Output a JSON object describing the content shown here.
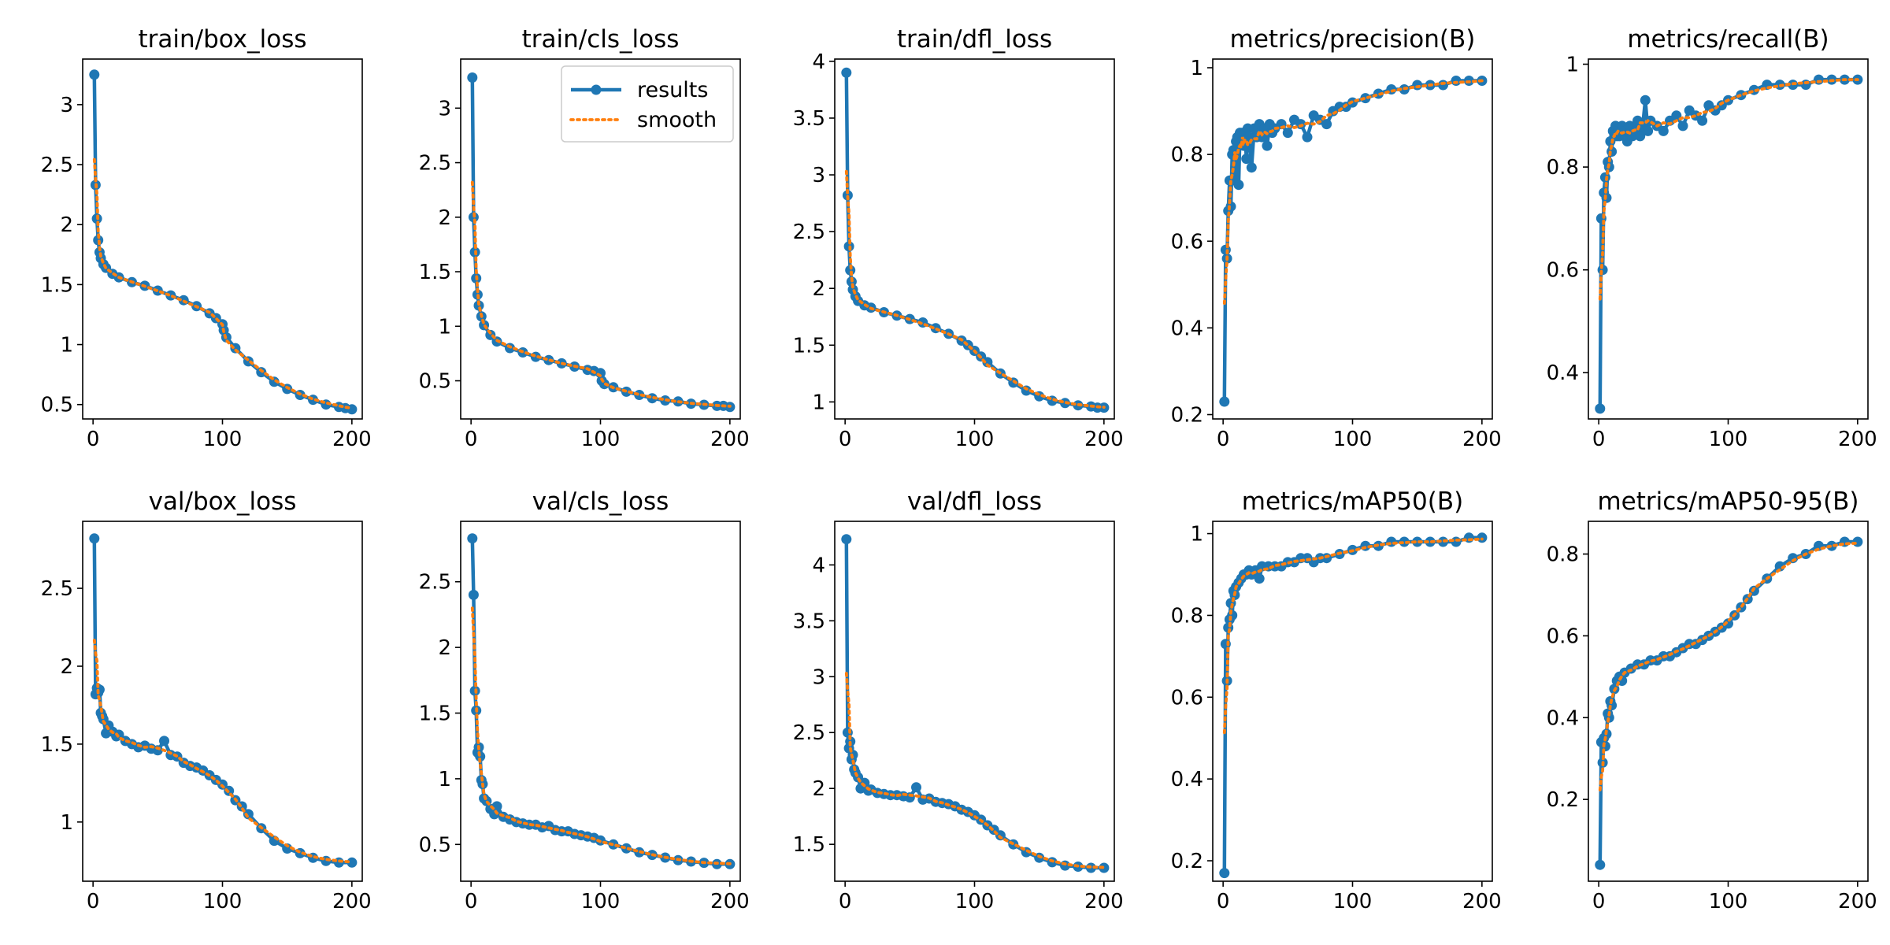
{
  "colors": {
    "results": "#1f77b4",
    "smooth": "#ff7f0e"
  },
  "legend": {
    "entries": [
      "results",
      "smooth"
    ],
    "subplot": 1,
    "placement": "upper-right"
  },
  "chart_data": [
    {
      "type": "line",
      "title": "train/box_loss",
      "xlim": [
        -8,
        208
      ],
      "ylim": [
        0.38,
        3.38
      ],
      "xticks": [
        0,
        100,
        200
      ],
      "yticks": [
        0.5,
        1.0,
        1.5,
        2.0,
        2.5,
        3.0
      ],
      "series": [
        {
          "name": "results",
          "x": [
            1,
            2,
            3,
            4,
            5,
            6,
            8,
            10,
            15,
            20,
            30,
            40,
            50,
            60,
            70,
            80,
            90,
            95,
            100,
            101,
            103,
            110,
            120,
            130,
            140,
            150,
            160,
            170,
            180,
            190,
            195,
            200
          ],
          "y": [
            3.25,
            2.33,
            2.05,
            1.87,
            1.77,
            1.72,
            1.67,
            1.64,
            1.59,
            1.56,
            1.52,
            1.49,
            1.45,
            1.41,
            1.37,
            1.32,
            1.26,
            1.22,
            1.17,
            1.12,
            1.06,
            0.97,
            0.86,
            0.77,
            0.69,
            0.63,
            0.58,
            0.54,
            0.5,
            0.48,
            0.47,
            0.46
          ]
        }
      ]
    },
    {
      "type": "line",
      "title": "train/cls_loss",
      "xlim": [
        -8,
        208
      ],
      "ylim": [
        0.15,
        3.45
      ],
      "xticks": [
        0,
        100,
        200
      ],
      "yticks": [
        0.5,
        1.0,
        1.5,
        2.0,
        2.5,
        3.0
      ],
      "series": [
        {
          "name": "results",
          "x": [
            1,
            2,
            3,
            4,
            5,
            6,
            8,
            10,
            15,
            20,
            30,
            40,
            50,
            60,
            70,
            80,
            90,
            95,
            100,
            101,
            103,
            110,
            120,
            130,
            140,
            150,
            160,
            170,
            180,
            190,
            195,
            200
          ],
          "y": [
            3.28,
            2.0,
            1.68,
            1.44,
            1.29,
            1.19,
            1.09,
            1.01,
            0.92,
            0.86,
            0.8,
            0.76,
            0.72,
            0.69,
            0.66,
            0.63,
            0.6,
            0.59,
            0.57,
            0.5,
            0.47,
            0.44,
            0.4,
            0.37,
            0.34,
            0.32,
            0.31,
            0.29,
            0.28,
            0.27,
            0.27,
            0.26
          ]
        }
      ]
    },
    {
      "type": "line",
      "title": "train/dfl_loss",
      "xlim": [
        -8,
        208
      ],
      "ylim": [
        0.85,
        4.02
      ],
      "xticks": [
        0,
        100,
        200
      ],
      "yticks": [
        1.0,
        1.5,
        2.0,
        2.5,
        3.0,
        3.5,
        4.0
      ],
      "series": [
        {
          "name": "results",
          "x": [
            1,
            2,
            3,
            4,
            5,
            6,
            8,
            10,
            15,
            20,
            30,
            40,
            50,
            60,
            70,
            80,
            90,
            95,
            100,
            105,
            110,
            120,
            130,
            140,
            150,
            160,
            170,
            180,
            190,
            195,
            200
          ],
          "y": [
            3.9,
            2.82,
            2.37,
            2.16,
            2.06,
            1.99,
            1.93,
            1.89,
            1.85,
            1.83,
            1.79,
            1.76,
            1.73,
            1.7,
            1.65,
            1.6,
            1.54,
            1.5,
            1.45,
            1.4,
            1.35,
            1.25,
            1.17,
            1.1,
            1.05,
            1.01,
            0.99,
            0.97,
            0.96,
            0.95,
            0.95
          ]
        }
      ]
    },
    {
      "type": "line",
      "title": "metrics/precision(B)",
      "xlim": [
        -8,
        208
      ],
      "ylim": [
        0.19,
        1.02
      ],
      "xticks": [
        0,
        100,
        200
      ],
      "yticks": [
        0.2,
        0.4,
        0.6,
        0.8,
        1.0
      ],
      "series": [
        {
          "name": "results",
          "x": [
            1,
            2,
            3,
            4,
            5,
            6,
            7,
            8,
            9,
            10,
            11,
            12,
            13,
            14,
            15,
            16,
            17,
            18,
            19,
            20,
            22,
            24,
            26,
            28,
            30,
            32,
            34,
            36,
            38,
            40,
            45,
            50,
            55,
            60,
            65,
            70,
            75,
            80,
            85,
            90,
            95,
            100,
            110,
            120,
            130,
            140,
            150,
            160,
            170,
            180,
            190,
            200
          ],
          "y": [
            0.23,
            0.58,
            0.56,
            0.67,
            0.74,
            0.68,
            0.8,
            0.81,
            0.74,
            0.83,
            0.84,
            0.73,
            0.85,
            0.83,
            0.85,
            0.82,
            0.85,
            0.79,
            0.86,
            0.84,
            0.77,
            0.86,
            0.84,
            0.87,
            0.84,
            0.86,
            0.82,
            0.87,
            0.85,
            0.86,
            0.87,
            0.85,
            0.88,
            0.87,
            0.84,
            0.89,
            0.88,
            0.87,
            0.9,
            0.91,
            0.91,
            0.92,
            0.93,
            0.94,
            0.95,
            0.95,
            0.96,
            0.96,
            0.96,
            0.97,
            0.97,
            0.97
          ]
        }
      ]
    },
    {
      "type": "line",
      "title": "metrics/recall(B)",
      "xlim": [
        -8,
        208
      ],
      "ylim": [
        0.31,
        1.01
      ],
      "xticks": [
        0,
        100,
        200
      ],
      "yticks": [
        0.4,
        0.6,
        0.8,
        1.0
      ],
      "series": [
        {
          "name": "results",
          "x": [
            1,
            2,
            3,
            4,
            5,
            6,
            7,
            8,
            9,
            10,
            11,
            12,
            13,
            14,
            15,
            16,
            18,
            20,
            22,
            24,
            26,
            28,
            30,
            32,
            34,
            36,
            38,
            40,
            45,
            50,
            55,
            60,
            65,
            70,
            75,
            80,
            85,
            90,
            95,
            100,
            110,
            120,
            130,
            140,
            150,
            160,
            170,
            180,
            190,
            200
          ],
          "y": [
            0.33,
            0.7,
            0.6,
            0.75,
            0.78,
            0.74,
            0.81,
            0.8,
            0.85,
            0.83,
            0.87,
            0.86,
            0.88,
            0.86,
            0.87,
            0.86,
            0.88,
            0.87,
            0.85,
            0.88,
            0.86,
            0.87,
            0.89,
            0.86,
            0.88,
            0.93,
            0.87,
            0.89,
            0.88,
            0.87,
            0.89,
            0.9,
            0.88,
            0.91,
            0.9,
            0.89,
            0.92,
            0.91,
            0.92,
            0.93,
            0.94,
            0.95,
            0.96,
            0.96,
            0.96,
            0.96,
            0.97,
            0.97,
            0.97,
            0.97
          ]
        }
      ]
    },
    {
      "type": "line",
      "title": "val/box_loss",
      "xlim": [
        -8,
        208
      ],
      "ylim": [
        0.62,
        2.93
      ],
      "xticks": [
        0,
        100,
        200
      ],
      "yticks": [
        1.0,
        1.5,
        2.0,
        2.5
      ],
      "series": [
        {
          "name": "results",
          "x": [
            1,
            2,
            3,
            4,
            5,
            6,
            7,
            8,
            10,
            12,
            15,
            18,
            20,
            25,
            30,
            35,
            40,
            45,
            50,
            55,
            60,
            65,
            70,
            75,
            80,
            85,
            90,
            95,
            100,
            105,
            110,
            115,
            120,
            130,
            140,
            150,
            160,
            170,
            180,
            190,
            200
          ],
          "y": [
            2.82,
            1.82,
            1.86,
            1.83,
            1.85,
            1.7,
            1.68,
            1.66,
            1.57,
            1.62,
            1.58,
            1.55,
            1.56,
            1.52,
            1.5,
            1.48,
            1.49,
            1.47,
            1.46,
            1.52,
            1.43,
            1.42,
            1.38,
            1.36,
            1.35,
            1.33,
            1.3,
            1.27,
            1.24,
            1.2,
            1.14,
            1.1,
            1.05,
            0.96,
            0.88,
            0.83,
            0.8,
            0.77,
            0.75,
            0.74,
            0.74
          ]
        }
      ]
    },
    {
      "type": "line",
      "title": "val/cls_loss",
      "xlim": [
        -8,
        208
      ],
      "ylim": [
        0.22,
        2.96
      ],
      "xticks": [
        0,
        100,
        200
      ],
      "yticks": [
        0.5,
        1.0,
        1.5,
        2.0,
        2.5
      ],
      "series": [
        {
          "name": "results",
          "x": [
            1,
            2,
            3,
            4,
            5,
            6,
            7,
            8,
            9,
            10,
            12,
            15,
            18,
            20,
            25,
            30,
            35,
            40,
            45,
            50,
            55,
            60,
            65,
            70,
            75,
            80,
            85,
            90,
            95,
            100,
            110,
            120,
            130,
            140,
            150,
            160,
            170,
            180,
            190,
            200
          ],
          "y": [
            2.83,
            2.4,
            1.67,
            1.52,
            1.2,
            1.24,
            1.17,
            0.99,
            0.96,
            0.85,
            0.83,
            0.77,
            0.73,
            0.79,
            0.71,
            0.69,
            0.67,
            0.66,
            0.65,
            0.65,
            0.63,
            0.64,
            0.61,
            0.6,
            0.6,
            0.58,
            0.57,
            0.56,
            0.55,
            0.53,
            0.5,
            0.47,
            0.44,
            0.42,
            0.4,
            0.38,
            0.37,
            0.36,
            0.35,
            0.35
          ]
        }
      ]
    },
    {
      "type": "line",
      "title": "val/dfl_loss",
      "xlim": [
        -8,
        208
      ],
      "ylim": [
        1.17,
        4.39
      ],
      "xticks": [
        0,
        100,
        200
      ],
      "yticks": [
        1.5,
        2.0,
        2.5,
        3.0,
        3.5,
        4.0
      ],
      "series": [
        {
          "name": "results",
          "x": [
            1,
            2,
            3,
            4,
            5,
            6,
            7,
            8,
            10,
            12,
            15,
            18,
            20,
            25,
            30,
            35,
            40,
            45,
            50,
            55,
            60,
            65,
            70,
            75,
            80,
            85,
            90,
            95,
            100,
            105,
            110,
            115,
            120,
            130,
            140,
            150,
            160,
            170,
            180,
            190,
            200
          ],
          "y": [
            4.23,
            2.5,
            2.36,
            2.42,
            2.26,
            2.3,
            2.17,
            2.14,
            2.1,
            2.0,
            2.05,
            1.98,
            1.99,
            1.96,
            1.95,
            1.94,
            1.94,
            1.93,
            1.92,
            2.01,
            1.9,
            1.91,
            1.88,
            1.87,
            1.86,
            1.84,
            1.81,
            1.79,
            1.76,
            1.72,
            1.67,
            1.63,
            1.58,
            1.5,
            1.43,
            1.38,
            1.34,
            1.31,
            1.3,
            1.29,
            1.29
          ]
        }
      ]
    },
    {
      "type": "line",
      "title": "metrics/mAP50(B)",
      "xlim": [
        -8,
        208
      ],
      "ylim": [
        0.15,
        1.03
      ],
      "xticks": [
        0,
        100,
        200
      ],
      "yticks": [
        0.2,
        0.4,
        0.6,
        0.8,
        1.0
      ],
      "series": [
        {
          "name": "results",
          "x": [
            1,
            2,
            3,
            4,
            5,
            6,
            7,
            8,
            9,
            10,
            12,
            14,
            16,
            18,
            20,
            22,
            25,
            28,
            30,
            35,
            40,
            45,
            50,
            55,
            60,
            65,
            70,
            75,
            80,
            90,
            100,
            110,
            120,
            130,
            140,
            150,
            160,
            170,
            180,
            190,
            200
          ],
          "y": [
            0.17,
            0.73,
            0.64,
            0.77,
            0.79,
            0.83,
            0.8,
            0.86,
            0.85,
            0.87,
            0.88,
            0.89,
            0.9,
            0.9,
            0.91,
            0.9,
            0.91,
            0.89,
            0.92,
            0.92,
            0.92,
            0.92,
            0.93,
            0.93,
            0.94,
            0.94,
            0.93,
            0.94,
            0.94,
            0.95,
            0.96,
            0.97,
            0.97,
            0.98,
            0.98,
            0.98,
            0.98,
            0.98,
            0.98,
            0.99,
            0.99
          ]
        }
      ]
    },
    {
      "type": "line",
      "title": "metrics/mAP50-95(B)",
      "xlim": [
        -8,
        208
      ],
      "ylim": [
        0.0,
        0.88
      ],
      "xticks": [
        0,
        100,
        200
      ],
      "yticks": [
        0.2,
        0.4,
        0.6,
        0.8
      ],
      "series": [
        {
          "name": "results",
          "x": [
            1,
            2,
            3,
            4,
            5,
            6,
            7,
            8,
            9,
            10,
            12,
            14,
            16,
            18,
            20,
            25,
            30,
            35,
            40,
            45,
            50,
            55,
            60,
            65,
            70,
            75,
            80,
            85,
            90,
            95,
            100,
            105,
            110,
            115,
            120,
            130,
            140,
            150,
            160,
            170,
            180,
            190,
            200
          ],
          "y": [
            0.04,
            0.34,
            0.29,
            0.35,
            0.33,
            0.36,
            0.41,
            0.4,
            0.44,
            0.43,
            0.47,
            0.49,
            0.5,
            0.49,
            0.51,
            0.52,
            0.53,
            0.53,
            0.54,
            0.54,
            0.55,
            0.55,
            0.56,
            0.57,
            0.58,
            0.58,
            0.59,
            0.6,
            0.61,
            0.62,
            0.63,
            0.65,
            0.67,
            0.69,
            0.71,
            0.74,
            0.77,
            0.79,
            0.8,
            0.82,
            0.82,
            0.83,
            0.83
          ]
        }
      ]
    }
  ]
}
